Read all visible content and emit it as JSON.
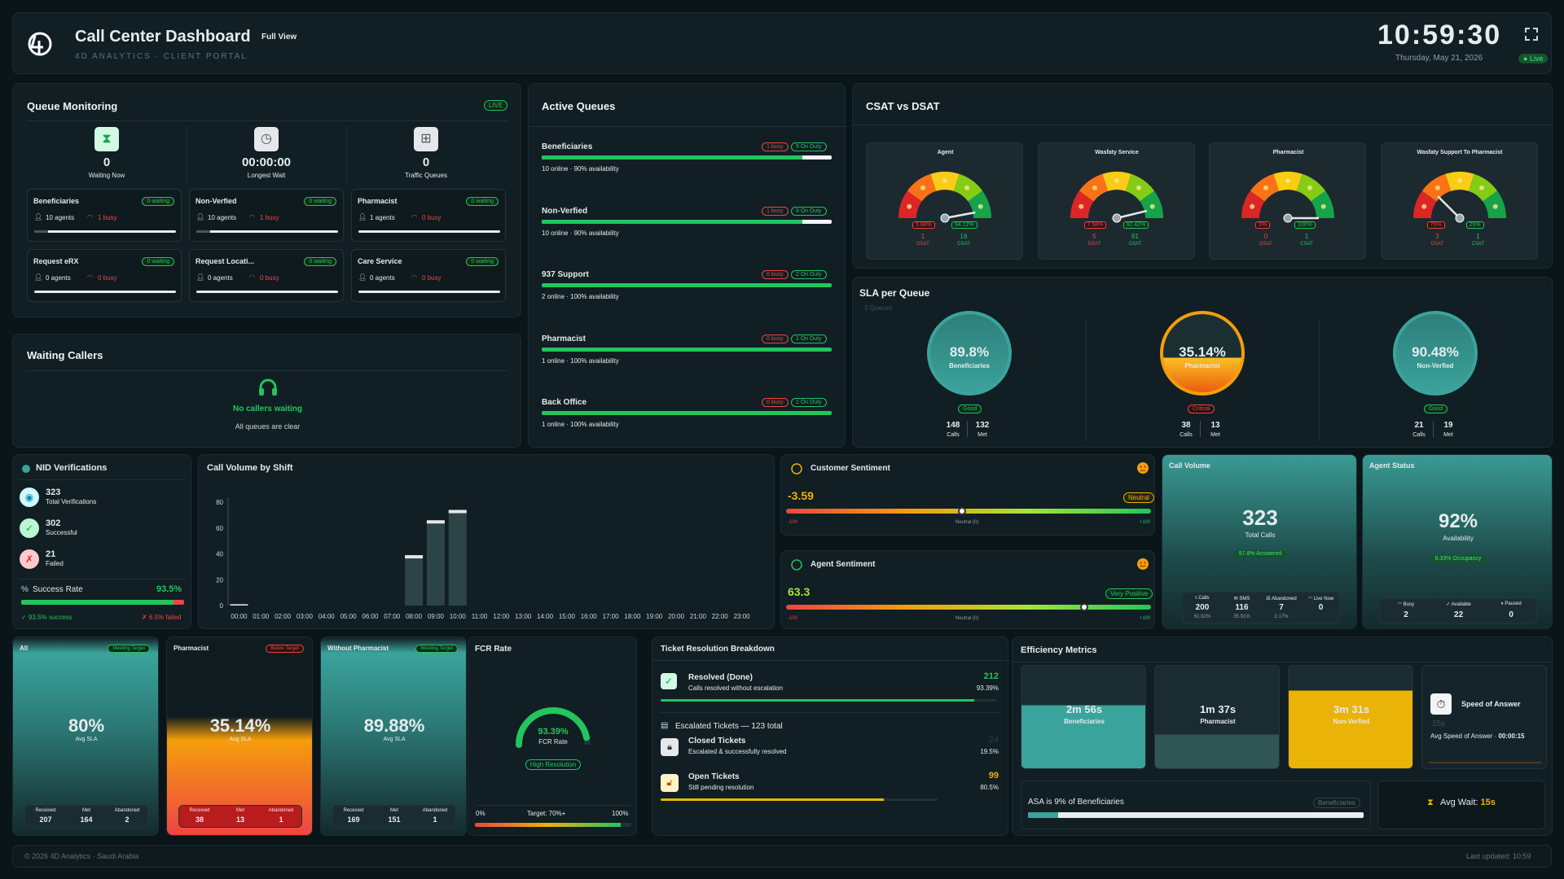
{
  "header": {
    "logo": "4D",
    "title": "Call Center Dashboard",
    "view": "Full View",
    "subtitle": "4D ANALYTICS · CLIENT PORTAL",
    "clock": "10:59:30",
    "date": "Thursday, May 21, 2026",
    "live": "● Live"
  },
  "queue_monitoring": {
    "title": "Queue Monitoring",
    "badge": "LIVE",
    "stats": [
      {
        "value": "0",
        "label": "Waiting Now"
      },
      {
        "value": "00:00:00",
        "label": "Longest Wait"
      },
      {
        "value": "0",
        "label": "Traffic Queues"
      }
    ],
    "queues": [
      {
        "name": "Beneficiaries",
        "status": "0 waiting",
        "agents": "10 agents",
        "busy": "1 busy",
        "fill": 0.1
      },
      {
        "name": "Non-Verfied",
        "status": "0 waiting",
        "agents": "10 agents",
        "busy": "1 busy",
        "fill": 0.1
      },
      {
        "name": "Pharmacist",
        "status": "0 waiting",
        "agents": "1 agents",
        "busy": "0 busy",
        "fill": 0
      },
      {
        "name": "Request eRX",
        "status": "0 waiting",
        "agents": "0 agents",
        "busy": "0 busy",
        "fill": 0
      },
      {
        "name": "Request Locati...",
        "status": "0 waiting",
        "agents": "0 agents",
        "busy": "0 busy",
        "fill": 0
      },
      {
        "name": "Care Service",
        "status": "0 waiting",
        "agents": "0 agents",
        "busy": "0 busy",
        "fill": 0
      }
    ]
  },
  "waiting_callers": {
    "title": "Waiting Callers",
    "message": "No callers waiting",
    "sub": "All queues are clear"
  },
  "active_queues": {
    "title": "Active Queues",
    "items": [
      {
        "name": "Beneficiaries",
        "busy": "1 busy",
        "duty": "9 On Duty",
        "info": "10 online · 90% availability",
        "avail": 0.9
      },
      {
        "name": "Non-Verfied",
        "busy": "1 busy",
        "duty": "9 On Duty",
        "info": "10 online · 90% availability",
        "avail": 0.9
      },
      {
        "name": "937 Support",
        "busy": "0 busy",
        "duty": "2 On Duty",
        "info": "2 online · 100% availability",
        "avail": 1
      },
      {
        "name": "Pharmacist",
        "busy": "0 busy",
        "duty": "1 On Duty",
        "info": "1 online · 100% availability",
        "avail": 1
      },
      {
        "name": "Back Office",
        "busy": "0 busy",
        "duty": "1 On Duty",
        "info": "1 online · 100% availability",
        "avail": 1
      }
    ]
  },
  "csat": {
    "title": "CSAT vs DSAT",
    "gauges": [
      {
        "name": "Agent",
        "dsat_pct": "5.88%",
        "csat_pct": "94.12%",
        "dsat": "1",
        "csat": "16",
        "csat_value": 94.12
      },
      {
        "name": "Wasfaty Service",
        "dsat_pct": "7.58%",
        "csat_pct": "92.42%",
        "dsat": "5",
        "csat": "61",
        "csat_value": 92.42
      },
      {
        "name": "Pharmacist",
        "dsat_pct": "0%",
        "csat_pct": "100%",
        "dsat": "0",
        "csat": "1",
        "csat_value": 100
      },
      {
        "name": "Wasfaty Support To Pharmacist",
        "dsat_pct": "75%",
        "csat_pct": "25%",
        "dsat": "3",
        "csat": "1",
        "csat_value": 25
      }
    ],
    "dsat_label": "DSAT",
    "csat_label": "CSAT"
  },
  "sla_queue": {
    "title": "SLA per Queue",
    "sub": "3 Queues",
    "items": [
      {
        "pct": "89.8%",
        "name": "Beneficiaries",
        "status": "Good",
        "calls": "148",
        "met": "132",
        "value": 89.8
      },
      {
        "pct": "35.14%",
        "name": "Pharmacist",
        "status": "Critical",
        "calls": "38",
        "met": "13",
        "value": 35.14
      },
      {
        "pct": "90.48%",
        "name": "Non-Verfied",
        "status": "Good",
        "calls": "21",
        "met": "19",
        "value": 90.48
      }
    ],
    "calls_label": "Calls",
    "met_label": "Met"
  },
  "nid": {
    "title": "NID Verifications",
    "items": [
      {
        "value": "323",
        "label": "Total Verifications"
      },
      {
        "value": "302",
        "label": "Successful"
      },
      {
        "value": "21",
        "label": "Failed"
      }
    ],
    "success_label": "Success Rate",
    "success_rate": "93.5%",
    "rate": 93.5,
    "success_note": "✓ 93.5% success",
    "failed_note": "✗ 6.5% failed"
  },
  "chart_data": {
    "type": "bar",
    "title": "Call Volume by Shift",
    "categories": [
      "00:00",
      "01:00",
      "02:00",
      "03:00",
      "04:00",
      "05:00",
      "06:00",
      "07:00",
      "08:00",
      "09:00",
      "10:00",
      "11:00",
      "12:00",
      "13:00",
      "14:00",
      "15:00",
      "16:00",
      "17:00",
      "18:00",
      "19:00",
      "20:00",
      "21:00",
      "22:00",
      "23:00"
    ],
    "values": [
      1,
      0,
      0,
      0,
      0,
      0,
      0,
      0,
      39,
      66,
      74,
      0,
      0,
      0,
      0,
      0,
      0,
      0,
      0,
      0,
      0,
      0,
      0,
      0
    ],
    "ylim": [
      0,
      80
    ],
    "yticks": [
      0,
      20,
      40,
      60,
      80
    ]
  },
  "customer_sentiment": {
    "title": "Customer Sentiment",
    "score": "-3.59",
    "value": -3.59,
    "tag": "Neutral",
    "min": "-100",
    "mid": "Neutral (0)",
    "max": "+100"
  },
  "agent_sentiment": {
    "title": "Agent Sentiment",
    "score": "63.3",
    "value": 63.3,
    "tag": "Very Positive",
    "min": "-100",
    "mid": "Neutral (0)",
    "max": "+100"
  },
  "call_volume": {
    "title": "Call Volume",
    "value": "323",
    "label": "Total Calls",
    "pill": "97.8% Answered",
    "stats": [
      {
        "label": "Calls",
        "value": "200",
        "sub": "61.92%"
      },
      {
        "label": "SMS",
        "value": "116",
        "sub": "35.91%"
      },
      {
        "label": "Abandoned",
        "value": "7",
        "sub": "2.17%"
      },
      {
        "label": "Live Now",
        "value": "0",
        "sub": ""
      }
    ]
  },
  "agent_status": {
    "title": "Agent Status",
    "value": "92%",
    "label": "Availability",
    "pill": "8.33% Occupancy",
    "stats": [
      {
        "label": "Busy",
        "value": "2"
      },
      {
        "label": "Available",
        "value": "22"
      },
      {
        "label": "Paused",
        "value": "0"
      }
    ]
  },
  "sla_cards": [
    {
      "name": "All",
      "badge": "Meeting Target",
      "value": "80%",
      "label": "Avg SLA",
      "received": "207",
      "met": "164",
      "abandoned": "2",
      "level": 80
    },
    {
      "name": "Pharmacist",
      "badge": "Below Target",
      "value": "35.14%",
      "label": "Avg SLA",
      "received": "38",
      "met": "13",
      "abandoned": "1",
      "level": 35.14
    },
    {
      "name": "Without Pharmacist",
      "badge": "Meeting Target",
      "value": "89.88%",
      "label": "Avg SLA",
      "received": "169",
      "met": "151",
      "abandoned": "1",
      "level": 89.88
    }
  ],
  "sla_card_labels": {
    "received": "Received",
    "met": "Met",
    "abandoned": "Abandoned"
  },
  "fcr": {
    "title": "FCR Rate",
    "value": "93.39%",
    "label": "FCR Rate",
    "tag": "High Resolution",
    "min": "0%",
    "target": "Target: 70%+",
    "max": "100%",
    "rate": 93.39
  },
  "tickets": {
    "title": "Ticket Resolution Breakdown",
    "resolved": {
      "label": "Resolved (Done)",
      "sub": "Calls resolved without escalation",
      "value": "212",
      "pct": "93.39%",
      "fill": 0.9339
    },
    "escalated_title": "Escalated Tickets — 123 total",
    "closed": {
      "label": "Closed Tickets",
      "sub": "Escalated & successfully resolved",
      "value": "24",
      "pct": "19.5%",
      "fill": 0.195
    },
    "open": {
      "label": "Open Tickets",
      "sub": "Still pending resolution",
      "value": "99",
      "pct": "80.5%",
      "fill": 0.805
    }
  },
  "efficiency": {
    "title": "Efficiency Metrics",
    "cards": [
      {
        "value": "2m 56s",
        "label": "Beneficiaries",
        "level": 0.62
      },
      {
        "value": "1m 37s",
        "label": "Pharmacist",
        "level": 0.34
      },
      {
        "value": "3m 31s",
        "label": "Non-Verfied",
        "level": 0.76
      }
    ],
    "speed": {
      "label": "Speed of Answer",
      "value": "15s",
      "sub": "Avg Speed of Answer · ",
      "time": "00:00:15"
    },
    "asa_text": "ASA is 9% of Beneficiaries",
    "asa_badge": "Beneficiaries",
    "asa_fill": 0.09,
    "avg_wait_label": "Avg Wait: ",
    "avg_wait": "15s"
  },
  "footer": {
    "copy": "© 2026 4D Analytics · Saudi Arabia",
    "updated": "Last updated: 10:59"
  },
  "colors": {
    "green": "#22c55e",
    "red": "#ef4444",
    "yellow": "#eab308",
    "teal": "#3aa39c",
    "bg": "#0a1519"
  }
}
